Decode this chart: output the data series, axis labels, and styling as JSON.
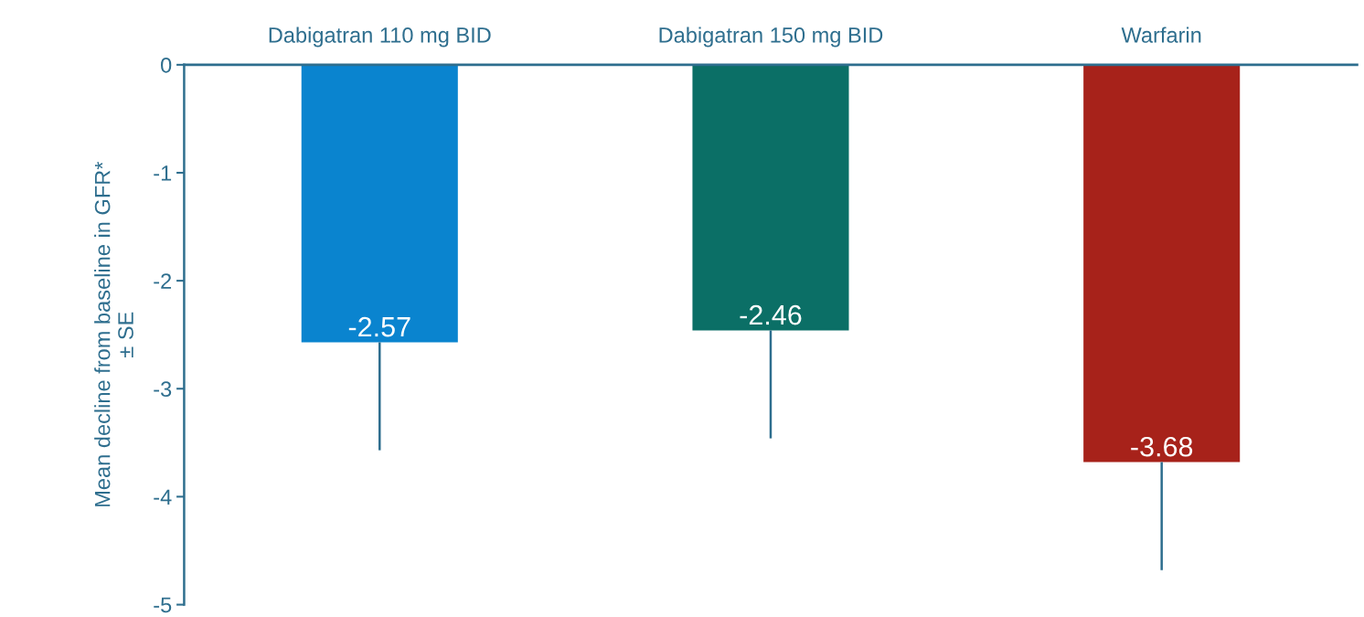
{
  "chart_data": {
    "type": "bar",
    "ylabel": "Mean decline from baseline in GFR*\n± SE",
    "categories": [
      "Dabigatran 110 mg BID",
      "Dabigatran 150 mg BID",
      "Warfarin"
    ],
    "values": [
      -2.57,
      -2.46,
      -3.68
    ],
    "colors": [
      "#0a84cf",
      "#0b6f66",
      "#a7221a"
    ],
    "errors": [
      [
        -3.57,
        -2.57
      ],
      [
        -3.46,
        -2.46
      ],
      [
        -4.68,
        -3.68
      ]
    ],
    "data_labels": true,
    "ylim": [
      -5,
      0
    ],
    "yticks": [
      -5,
      -4,
      -3,
      -2,
      -1,
      0
    ],
    "grid": false
  }
}
